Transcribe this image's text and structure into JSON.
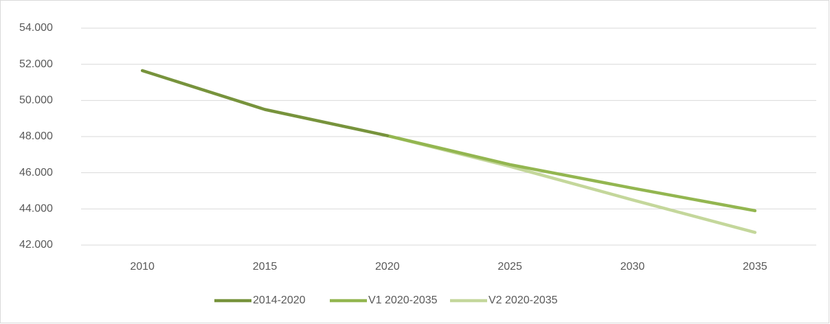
{
  "chart_data": {
    "type": "line",
    "categories": [
      "2010",
      "2015",
      "2020",
      "2025",
      "2030",
      "2035"
    ],
    "series": [
      {
        "name": "2014-2020",
        "color": "#77933c",
        "values": [
          51650,
          49500,
          48050,
          null,
          null,
          null
        ]
      },
      {
        "name": "V1 2020-2035",
        "color": "#93b650",
        "values": [
          null,
          null,
          48050,
          46450,
          45150,
          43900
        ]
      },
      {
        "name": "V2 2020-2035",
        "color": "#c4d79b",
        "values": [
          null,
          null,
          48050,
          46350,
          44500,
          42700
        ]
      }
    ],
    "ylim": [
      42000,
      54000
    ],
    "yticks": [
      {
        "value": 42000,
        "label": "42.000"
      },
      {
        "value": 44000,
        "label": "44.000"
      },
      {
        "value": 46000,
        "label": "46.000"
      },
      {
        "value": 48000,
        "label": "48.000"
      },
      {
        "value": 50000,
        "label": "50.000"
      },
      {
        "value": 52000,
        "label": "52.000"
      },
      {
        "value": 54000,
        "label": "54.000"
      }
    ],
    "grid": true,
    "legend": "bottom"
  }
}
